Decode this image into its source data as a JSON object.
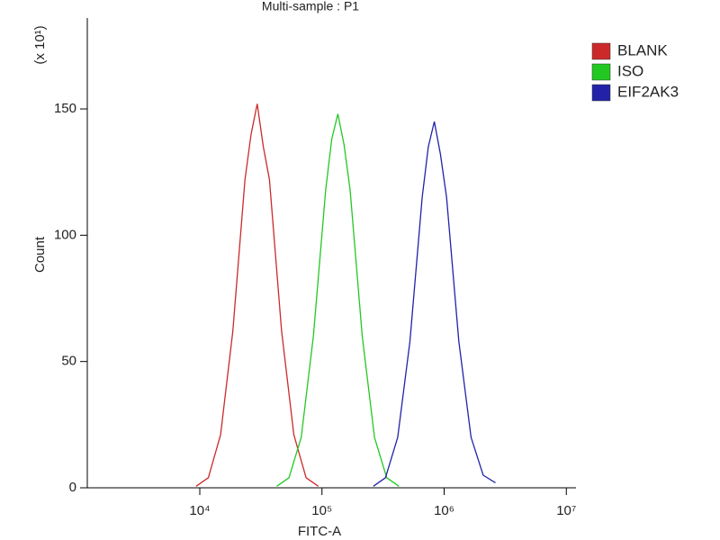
{
  "chart_data": {
    "type": "line",
    "title": "Multi-sample : P1",
    "x_label": "FITC-A",
    "y_label": "Count",
    "y_multiplier": "(x 10¹)",
    "log_x": true,
    "xlim": [
      1200,
      12000000
    ],
    "xticks": [
      {
        "value": 10000,
        "label": "10⁴"
      },
      {
        "value": 100000,
        "label": "10⁵"
      },
      {
        "value": 1000000,
        "label": "10⁶"
      },
      {
        "value": 10000000,
        "label": "10⁷"
      }
    ],
    "ylim": [
      0,
      186
    ],
    "yticks": [
      0,
      50,
      100,
      150
    ],
    "legend": "top-right-outside",
    "series": [
      {
        "name": "BLANK",
        "color": "#cc2a2a",
        "x": [
          9330,
          11750,
          14790,
          18620,
          23440,
          26300,
          29510,
          33100,
          37150,
          46770,
          58880,
          74130,
          93330
        ],
        "values": [
          0.6,
          4,
          21,
          62,
          122,
          140,
          152,
          135,
          122,
          62,
          21,
          4,
          0.6
        ]
      },
      {
        "name": "ISO",
        "color": "#22c822",
        "x": [
          42660,
          53700,
          67610,
          85110,
          107200,
          120200,
          134900,
          151400,
          169800,
          213800,
          269200,
          338800,
          426600
        ],
        "values": [
          0.6,
          4,
          20,
          60,
          118,
          138,
          148,
          136,
          118,
          60,
          20,
          4,
          0.6
        ]
      },
      {
        "name": "EIF2AK3",
        "color": "#2222a8",
        "x": [
          263000,
          331100,
          416900,
          524800,
          660700,
          741300,
          831800,
          933300,
          1047000,
          1318000,
          1660000,
          2089000,
          2630000
        ],
        "values": [
          0.6,
          4,
          20,
          58,
          115,
          135,
          145,
          132,
          115,
          58,
          20,
          5,
          2
        ]
      }
    ]
  }
}
